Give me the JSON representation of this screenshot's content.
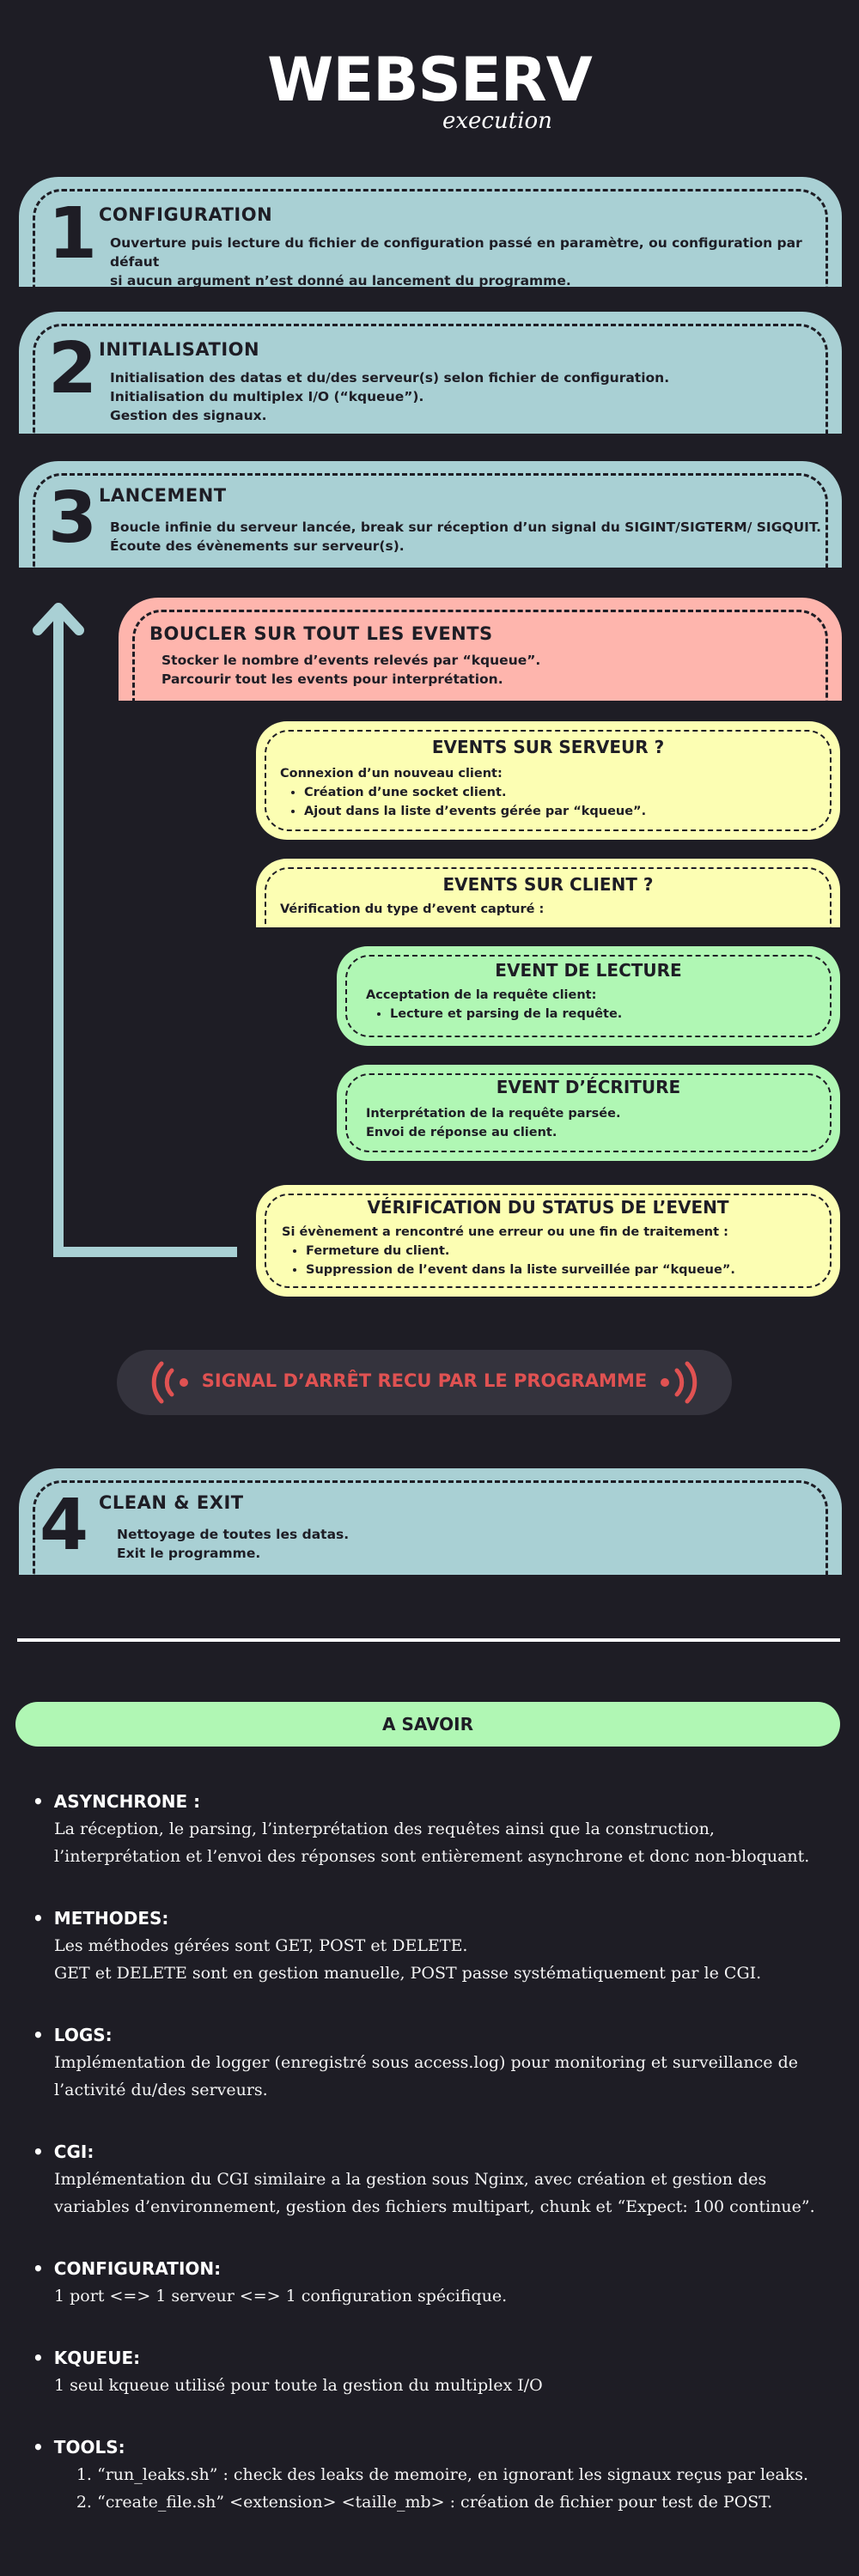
{
  "header": {
    "title": "WEBSERV",
    "subtitle": "execution"
  },
  "steps": [
    {
      "number": "1",
      "heading": "CONFIGURATION",
      "lines": [
        "Ouverture puis lecture du fichier de configuration passé en paramètre, ou configuration par défaut",
        "si aucun argument n’est donné au lancement du programme."
      ]
    },
    {
      "number": "2",
      "heading": "INITIALISATION",
      "lines": [
        "Initialisation des datas et du/des serveur(s) selon fichier de configuration.",
        "Initialisation du multiplex I/O (“kqueue”).",
        "Gestion des signaux."
      ]
    },
    {
      "number": "3",
      "heading": "LANCEMENT",
      "lines": [
        "Boucle infinie du serveur lancée, break sur réception d’un signal du SIGINT/SIGTERM/ SIGQUIT.",
        "Écoute des évènements sur serveur(s)."
      ]
    },
    {
      "number": "4",
      "heading": "CLEAN & EXIT",
      "lines": [
        "Nettoyage de toutes les datas.",
        "Exit le programme."
      ]
    }
  ],
  "loop": {
    "heading": "BOUCLER SUR TOUT LES EVENTS",
    "lines": [
      "Stocker le nombre d’events relevés par “kqueue”.",
      "Parcourir tout les events pour interprétation."
    ]
  },
  "server_events": {
    "heading": "EVENTS SUR SERVEUR ?",
    "intro": "Connexion d’un nouveau client:",
    "bullets": [
      "Création d’une socket client.",
      "Ajout dans la liste d’events gérée par “kqueue”."
    ]
  },
  "client_events": {
    "heading": "EVENTS SUR CLIENT ?",
    "intro": "Vérification du type d’event capturé :"
  },
  "read_event": {
    "heading": "EVENT DE LECTURE",
    "intro": "Acceptation de la requête client:",
    "bullets": [
      "Lecture et parsing de la requête."
    ]
  },
  "write_event": {
    "heading": "EVENT D’ÉCRITURE",
    "lines": [
      "Interprétation de la requête parsée.",
      "Envoi de réponse au client."
    ]
  },
  "status_check": {
    "heading": "VÉRIFICATION DU STATUS DE L’EVENT",
    "intro": "Si évènement a rencontré une erreur ou une fin de traitement :",
    "bullets": [
      "Fermeture du client.",
      "Suppression de l’event dans la liste surveillée par “kqueue”."
    ]
  },
  "signal_banner": {
    "text": "SIGNAL D’ARRÊT RECU PAR LE PROGRAMME"
  },
  "savoir": {
    "heading": "A SAVOIR",
    "items": [
      {
        "title": "ASYNCHRONE :",
        "lines": [
          "La réception, le parsing, l’interprétation des requêtes ainsi que la construction,",
          "l’interprétation et l’envoi des réponses sont entièrement asynchrone et donc non-bloquant."
        ]
      },
      {
        "title": "METHODES:",
        "lines": [
          "Les méthodes gérées sont GET, POST et DELETE.",
          "GET et DELETE sont en gestion manuelle, POST passe systématiquement par le CGI."
        ]
      },
      {
        "title": "LOGS:",
        "lines": [
          "Implémentation de logger (enregistré sous access.log) pour monitoring et surveillance de",
          "l’activité du/des serveurs."
        ]
      },
      {
        "title": "CGI:",
        "lines": [
          "Implémentation du CGI similaire a la gestion sous Nginx, avec création et gestion des",
          "variables d’environnement, gestion des fichiers multipart, chunk et “Expect: 100 continue”."
        ]
      },
      {
        "title": "CONFIGURATION:",
        "lines": [
          "1 port <=> 1 serveur <=> 1 configuration spécifique."
        ]
      },
      {
        "title": "KQUEUE:",
        "lines": [
          "1 seul kqueue utilisé pour toute la gestion du multiplex I/O"
        ]
      },
      {
        "title": "TOOLS:",
        "numbered": [
          "“run_leaks.sh” : check des leaks de memoire, en ignorant les signaux reçus par leaks.",
          "“create_file.sh” <extension> <taille_mb> : création de fichier pour test de POST."
        ]
      }
    ]
  },
  "colors": {
    "background": "#1e1d25",
    "teal": "#a9d0d4",
    "yellow": "#fcfeb3",
    "green": "#b0f7b4",
    "pink": "#feb5ad",
    "signal_red": "#e05252"
  },
  "icons": [
    "broadcast-left-icon",
    "broadcast-right-icon",
    "loop-arrow-up-icon"
  ]
}
